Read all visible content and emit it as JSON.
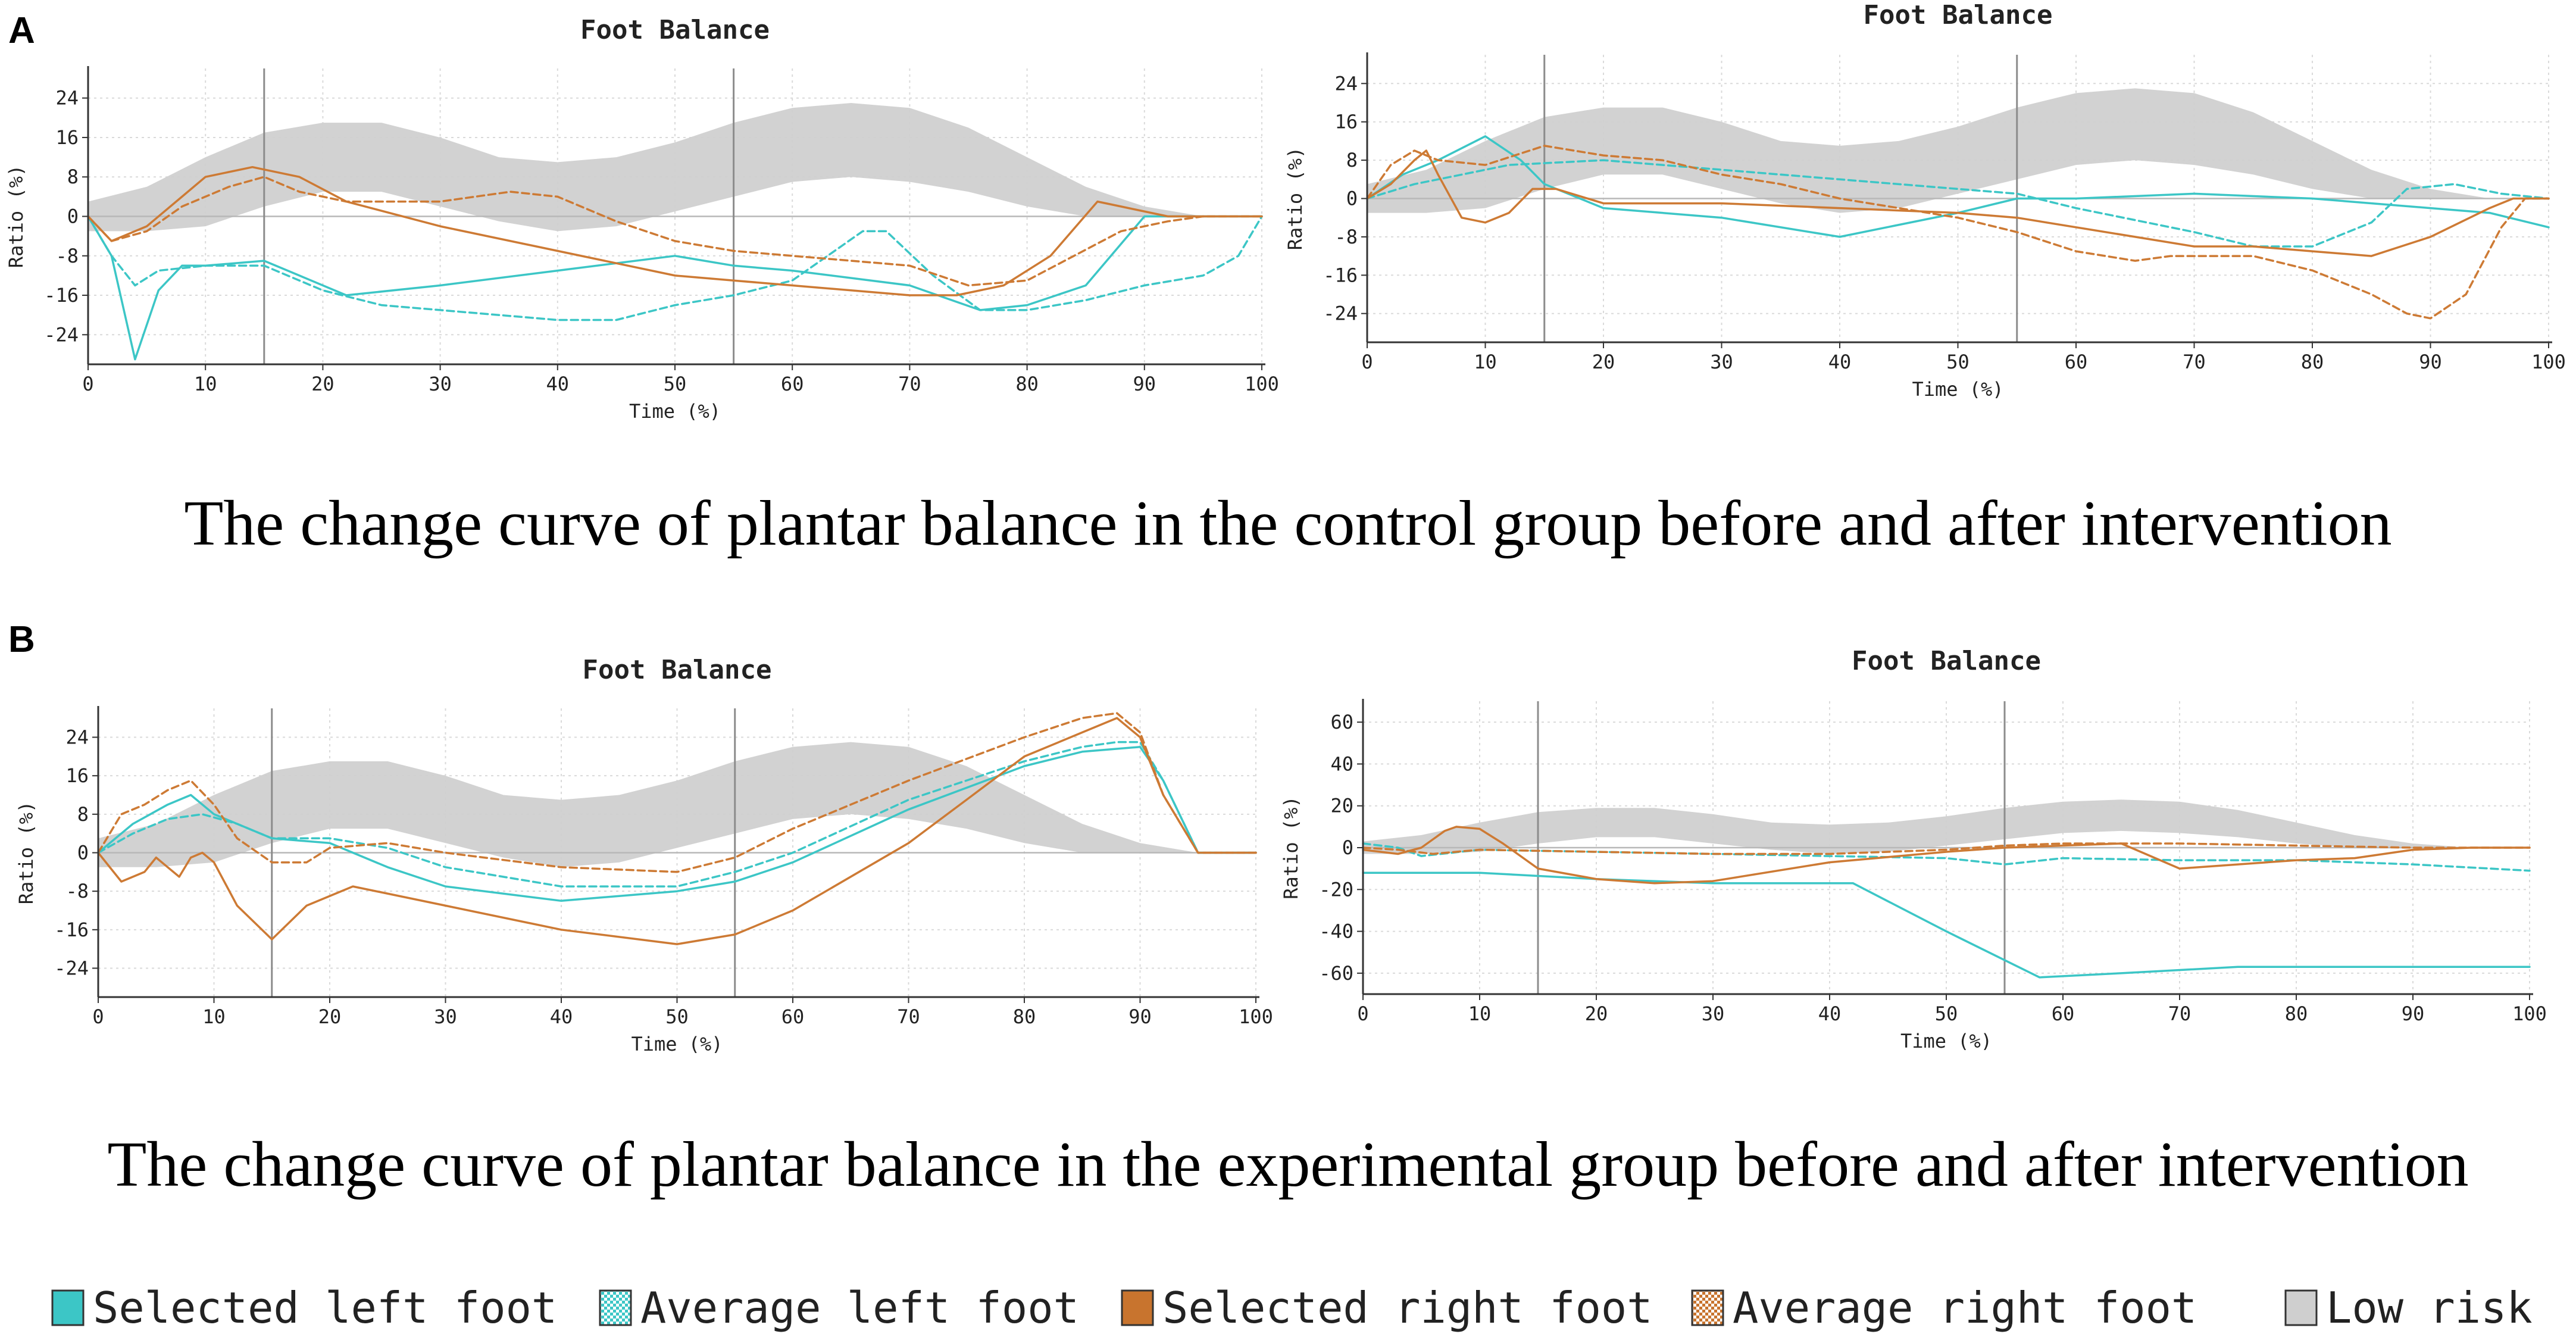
{
  "panels": [
    {
      "letter": "A",
      "caption": "The change curve of plantar balance in the control group before and after intervention"
    },
    {
      "letter": "B",
      "caption": "The change curve of plantar balance in the experimental group before and after intervention"
    }
  ],
  "legend": [
    {
      "label": "Selected left foot",
      "color": "#3cc6c6",
      "swatch": "solid"
    },
    {
      "label": "Average left foot",
      "color": "#3cc6c6",
      "swatch": "checker"
    },
    {
      "label": "Selected right foot",
      "color": "#c8742e",
      "swatch": "solid"
    },
    {
      "label": "Average right foot",
      "color": "#c8742e",
      "swatch": "checker"
    },
    {
      "label": "Low risk",
      "color": "#cfcfcf",
      "swatch": "solid"
    }
  ],
  "colors": {
    "left": "#3cc6c6",
    "right": "#cd7a34",
    "band": "#d0d0d0",
    "phase_line": "#8c8c8c"
  },
  "chart_data": [
    {
      "type": "line",
      "panel": "A",
      "title": "Foot Balance",
      "xlabel": "Time (%)",
      "ylabel": "Ratio (%)",
      "xlim": [
        0,
        100
      ],
      "ylim": [
        -30,
        30
      ],
      "xticks": [
        0,
        10,
        20,
        30,
        40,
        50,
        60,
        70,
        80,
        90,
        100
      ],
      "yticks": [
        24,
        16,
        8,
        0,
        -8,
        -16,
        -24
      ],
      "phase_lines": [
        15,
        55
      ],
      "low_risk_band": {
        "x": [
          0,
          5,
          10,
          15,
          20,
          25,
          30,
          35,
          40,
          45,
          50,
          55,
          60,
          65,
          70,
          75,
          80,
          85,
          90,
          95
        ],
        "lower": [
          -3,
          -3,
          -2,
          2,
          5,
          5,
          2,
          -1,
          -3,
          -2,
          1,
          4,
          7,
          8,
          7,
          5,
          2,
          0,
          0,
          0
        ],
        "upper": [
          3,
          6,
          12,
          17,
          19,
          19,
          16,
          12,
          11,
          12,
          15,
          19,
          22,
          23,
          22,
          18,
          12,
          6,
          2,
          0
        ]
      },
      "series": [
        {
          "name": "Selected left foot",
          "style": "solid",
          "x": [
            0,
            2,
            4,
            6,
            8,
            10,
            15,
            18,
            22,
            30,
            40,
            50,
            55,
            60,
            70,
            76,
            80,
            85,
            90,
            93,
            100
          ],
          "y": [
            0,
            -8,
            -29,
            -15,
            -10,
            -10,
            -9,
            -12,
            -16,
            -14,
            -11,
            -8,
            -10,
            -11,
            -14,
            -19,
            -18,
            -14,
            0,
            0,
            0
          ]
        },
        {
          "name": "Average left foot",
          "style": "dashed",
          "x": [
            0,
            2,
            4,
            6,
            10,
            15,
            20,
            25,
            30,
            40,
            45,
            50,
            55,
            60,
            63,
            66,
            68,
            72,
            76,
            80,
            85,
            90,
            95,
            98,
            100
          ],
          "y": [
            0,
            -8,
            -14,
            -11,
            -10,
            -10,
            -15,
            -18,
            -19,
            -21,
            -21,
            -18,
            -16,
            -13,
            -8,
            -3,
            -3,
            -12,
            -19,
            -19,
            -17,
            -14,
            -12,
            -8,
            0
          ]
        },
        {
          "name": "Selected right foot",
          "style": "solid",
          "x": [
            0,
            2,
            5,
            8,
            10,
            14,
            18,
            22,
            30,
            40,
            50,
            55,
            60,
            70,
            74,
            78,
            82,
            86,
            88,
            92,
            100
          ],
          "y": [
            0,
            -5,
            -2,
            4,
            8,
            10,
            8,
            3,
            -2,
            -7,
            -12,
            -13,
            -14,
            -16,
            -16,
            -14,
            -8,
            3,
            2,
            0,
            0
          ]
        },
        {
          "name": "Average right foot",
          "style": "dashed",
          "x": [
            0,
            2,
            5,
            8,
            12,
            15,
            18,
            22,
            30,
            36,
            40,
            45,
            50,
            55,
            60,
            70,
            75,
            80,
            84,
            88,
            92,
            95,
            98,
            100
          ],
          "y": [
            0,
            -5,
            -3,
            2,
            6,
            8,
            5,
            3,
            3,
            5,
            4,
            -1,
            -5,
            -7,
            -8,
            -10,
            -14,
            -13,
            -8,
            -3,
            -1,
            0,
            0,
            0
          ]
        }
      ]
    },
    {
      "type": "line",
      "panel": "A",
      "title": "Foot Balance",
      "xlabel": "Time (%)",
      "ylabel": "Ratio (%)",
      "xlim": [
        0,
        100
      ],
      "ylim": [
        -30,
        30
      ],
      "xticks": [
        0,
        10,
        20,
        30,
        40,
        50,
        60,
        70,
        80,
        90,
        100
      ],
      "yticks": [
        24,
        16,
        8,
        0,
        -8,
        -16,
        -24
      ],
      "phase_lines": [
        15,
        55
      ],
      "low_risk_band": {
        "x": [
          0,
          5,
          10,
          15,
          20,
          25,
          30,
          35,
          40,
          45,
          50,
          55,
          60,
          65,
          70,
          75,
          80,
          85,
          90,
          95
        ],
        "lower": [
          -3,
          -3,
          -2,
          2,
          5,
          5,
          2,
          -1,
          -3,
          -2,
          1,
          4,
          7,
          8,
          7,
          5,
          2,
          0,
          0,
          0
        ],
        "upper": [
          3,
          6,
          12,
          17,
          19,
          19,
          16,
          12,
          11,
          12,
          15,
          19,
          22,
          23,
          22,
          18,
          12,
          6,
          2,
          0
        ]
      },
      "series": [
        {
          "name": "Selected left foot",
          "style": "solid",
          "x": [
            0,
            3,
            6,
            10,
            13,
            15,
            20,
            30,
            40,
            50,
            55,
            60,
            70,
            80,
            90,
            95,
            100
          ],
          "y": [
            0,
            5,
            8,
            13,
            8,
            3,
            -2,
            -4,
            -8,
            -3,
            0,
            0,
            1,
            0,
            -2,
            -3,
            -6
          ]
        },
        {
          "name": "Average left foot",
          "style": "dashed",
          "x": [
            0,
            4,
            8,
            12,
            20,
            30,
            40,
            50,
            55,
            60,
            70,
            75,
            80,
            85,
            88,
            92,
            96,
            100
          ],
          "y": [
            0,
            3,
            5,
            7,
            8,
            6,
            4,
            2,
            1,
            -2,
            -7,
            -10,
            -10,
            -5,
            2,
            3,
            1,
            0
          ]
        },
        {
          "name": "Selected right foot",
          "style": "solid",
          "x": [
            0,
            2,
            4,
            5,
            6,
            8,
            10,
            12,
            14,
            16,
            20,
            30,
            40,
            50,
            55,
            60,
            70,
            75,
            80,
            85,
            90,
            95,
            97,
            100
          ],
          "y": [
            0,
            3,
            8,
            10,
            5,
            -4,
            -5,
            -3,
            2,
            2,
            -1,
            -1,
            -2,
            -3,
            -4,
            -6,
            -10,
            -10,
            -11,
            -12,
            -8,
            -2,
            0,
            0
          ]
        },
        {
          "name": "Average right foot",
          "style": "dashed",
          "x": [
            0,
            2,
            4,
            6,
            10,
            15,
            20,
            25,
            30,
            35,
            40,
            45,
            50,
            55,
            60,
            65,
            68,
            70,
            75,
            80,
            85,
            88,
            90,
            93,
            96,
            98,
            100
          ],
          "y": [
            0,
            7,
            10,
            8,
            7,
            11,
            9,
            8,
            5,
            3,
            0,
            -2,
            -4,
            -7,
            -11,
            -13,
            -12,
            -12,
            -12,
            -15,
            -20,
            -24,
            -25,
            -20,
            -6,
            0,
            0
          ]
        }
      ]
    },
    {
      "type": "line",
      "panel": "B",
      "title": "Foot Balance",
      "xlabel": "Time (%)",
      "ylabel": "Ratio (%)",
      "xlim": [
        0,
        100
      ],
      "ylim": [
        -30,
        30
      ],
      "xticks": [
        0,
        10,
        20,
        30,
        40,
        50,
        60,
        70,
        80,
        90,
        100
      ],
      "yticks": [
        24,
        16,
        8,
        0,
        -8,
        -16,
        -24
      ],
      "phase_lines": [
        15,
        55
      ],
      "low_risk_band": {
        "x": [
          0,
          5,
          10,
          15,
          20,
          25,
          30,
          35,
          40,
          45,
          50,
          55,
          60,
          65,
          70,
          75,
          80,
          85,
          90,
          95
        ],
        "lower": [
          -3,
          -3,
          -2,
          2,
          5,
          5,
          2,
          -1,
          -3,
          -2,
          1,
          4,
          7,
          8,
          7,
          5,
          2,
          0,
          0,
          0
        ],
        "upper": [
          3,
          6,
          12,
          17,
          19,
          19,
          16,
          12,
          11,
          12,
          15,
          19,
          22,
          23,
          22,
          18,
          12,
          6,
          2,
          0
        ]
      },
      "series": [
        {
          "name": "Selected left foot",
          "style": "solid",
          "x": [
            0,
            3,
            6,
            8,
            10,
            15,
            20,
            25,
            30,
            40,
            50,
            55,
            60,
            70,
            80,
            85,
            90,
            92,
            95,
            100
          ],
          "y": [
            0,
            6,
            10,
            12,
            8,
            3,
            2,
            -3,
            -7,
            -10,
            -8,
            -6,
            -2,
            9,
            18,
            21,
            22,
            15,
            0,
            0
          ]
        },
        {
          "name": "Average left foot",
          "style": "dashed",
          "x": [
            0,
            3,
            6,
            9,
            12,
            15,
            20,
            25,
            30,
            40,
            50,
            55,
            60,
            70,
            80,
            85,
            88,
            90,
            92,
            95,
            100
          ],
          "y": [
            0,
            4,
            7,
            8,
            6,
            3,
            3,
            1,
            -3,
            -7,
            -7,
            -4,
            0,
            11,
            19,
            22,
            23,
            23,
            15,
            0,
            0
          ]
        },
        {
          "name": "Selected right foot",
          "style": "solid",
          "x": [
            0,
            2,
            4,
            5,
            6,
            7,
            8,
            9,
            10,
            12,
            15,
            18,
            22,
            30,
            40,
            50,
            55,
            60,
            70,
            75,
            80,
            85,
            88,
            90,
            92,
            95,
            100
          ],
          "y": [
            0,
            -6,
            -4,
            -1,
            -3,
            -5,
            -1,
            0,
            -2,
            -11,
            -18,
            -11,
            -7,
            -11,
            -16,
            -19,
            -17,
            -12,
            2,
            11,
            20,
            25,
            28,
            24,
            12,
            0,
            0
          ]
        },
        {
          "name": "Average right foot",
          "style": "dashed",
          "x": [
            0,
            2,
            4,
            6,
            8,
            10,
            12,
            15,
            18,
            20,
            25,
            30,
            40,
            50,
            55,
            60,
            70,
            80,
            85,
            88,
            90,
            92,
            95,
            100
          ],
          "y": [
            0,
            8,
            10,
            13,
            15,
            10,
            3,
            -2,
            -2,
            1,
            2,
            0,
            -3,
            -4,
            -1,
            5,
            15,
            24,
            28,
            29,
            25,
            12,
            0,
            0
          ]
        }
      ]
    },
    {
      "type": "line",
      "panel": "B",
      "title": "Foot Balance",
      "xlabel": "Time (%)",
      "ylabel": "Ratio (%)",
      "xlim": [
        0,
        100
      ],
      "ylim": [
        -70,
        70
      ],
      "xticks": [
        0,
        10,
        20,
        30,
        40,
        50,
        60,
        70,
        80,
        90,
        100
      ],
      "yticks": [
        60,
        40,
        20,
        0,
        -20,
        -40,
        -60
      ],
      "phase_lines": [
        15,
        55
      ],
      "low_risk_band": {
        "x": [
          0,
          5,
          10,
          15,
          20,
          25,
          30,
          35,
          40,
          45,
          50,
          55,
          60,
          65,
          70,
          75,
          80,
          85,
          90,
          95
        ],
        "lower": [
          -3,
          -3,
          -2,
          2,
          5,
          5,
          2,
          -1,
          -3,
          -2,
          1,
          4,
          7,
          8,
          7,
          5,
          2,
          0,
          0,
          0
        ],
        "upper": [
          3,
          6,
          12,
          17,
          19,
          19,
          16,
          12,
          11,
          12,
          15,
          19,
          22,
          23,
          22,
          18,
          12,
          6,
          2,
          0
        ]
      },
      "series": [
        {
          "name": "Selected left foot",
          "style": "solid",
          "x": [
            0,
            10,
            20,
            30,
            42,
            50,
            58,
            65,
            75,
            85,
            100
          ],
          "y": [
            -12,
            -12,
            -15,
            -17,
            -17,
            -40,
            -62,
            -60,
            -57,
            -57,
            -57
          ]
        },
        {
          "name": "Average left foot",
          "style": "dashed",
          "x": [
            0,
            3,
            5,
            10,
            20,
            30,
            40,
            50,
            55,
            60,
            70,
            80,
            90,
            100
          ],
          "y": [
            2,
            0,
            -4,
            -1,
            -2,
            -3,
            -4,
            -5,
            -8,
            -5,
            -6,
            -6,
            -8,
            -11
          ]
        },
        {
          "name": "Selected right foot",
          "style": "solid",
          "x": [
            0,
            3,
            5,
            7,
            8,
            10,
            12,
            15,
            20,
            25,
            30,
            40,
            50,
            55,
            60,
            65,
            70,
            75,
            80,
            85,
            90,
            95,
            100
          ],
          "y": [
            -1,
            -3,
            0,
            8,
            10,
            9,
            2,
            -10,
            -15,
            -17,
            -16,
            -7,
            -2,
            0,
            1,
            2,
            -10,
            -8,
            -6,
            -5,
            -1,
            0,
            0
          ]
        },
        {
          "name": "Average right foot",
          "style": "dashed",
          "x": [
            0,
            3,
            6,
            10,
            20,
            30,
            40,
            50,
            55,
            60,
            70,
            80,
            90,
            100
          ],
          "y": [
            0,
            -1,
            -3,
            -1,
            -2,
            -3,
            -3,
            -1,
            1,
            2,
            2,
            1,
            0,
            0
          ]
        }
      ]
    }
  ]
}
